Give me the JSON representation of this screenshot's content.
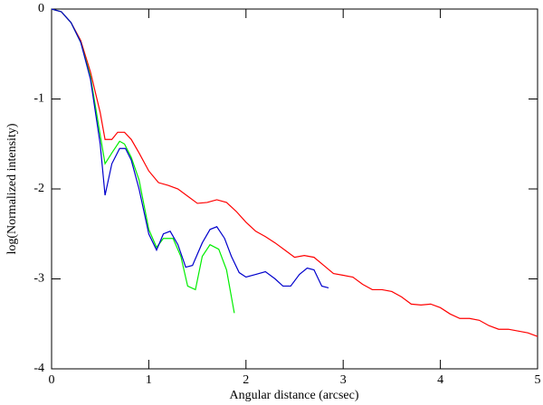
{
  "chart_data": {
    "type": "line",
    "xlabel": "Angular distance (arcsec)",
    "ylabel": "log(Normalized intensity)",
    "xlim": [
      0,
      5
    ],
    "ylim": [
      -4,
      0
    ],
    "xticks": [
      0,
      1,
      2,
      3,
      4,
      5
    ],
    "yticks": [
      0,
      -1,
      -2,
      -3,
      -4
    ],
    "series": [
      {
        "color": "#ff0000",
        "x": [
          0,
          0.1,
          0.2,
          0.3,
          0.4,
          0.5,
          0.55,
          0.62,
          0.68,
          0.75,
          0.82,
          0.9,
          1.0,
          1.1,
          1.2,
          1.3,
          1.4,
          1.5,
          1.6,
          1.7,
          1.8,
          1.9,
          2.0,
          2.1,
          2.2,
          2.3,
          2.4,
          2.5,
          2.6,
          2.7,
          2.8,
          2.9,
          3.0,
          3.1,
          3.2,
          3.3,
          3.4,
          3.5,
          3.6,
          3.7,
          3.8,
          3.9,
          4.0,
          4.1,
          4.2,
          4.3,
          4.4,
          4.5,
          4.6,
          4.7,
          4.8,
          4.9,
          5.0
        ],
        "values": [
          0,
          -0.03,
          -0.15,
          -0.35,
          -0.7,
          -1.15,
          -1.45,
          -1.45,
          -1.37,
          -1.37,
          -1.45,
          -1.6,
          -1.8,
          -1.93,
          -1.96,
          -2.0,
          -2.08,
          -2.16,
          -2.15,
          -2.12,
          -2.15,
          -2.25,
          -2.37,
          -2.47,
          -2.53,
          -2.6,
          -2.68,
          -2.76,
          -2.74,
          -2.76,
          -2.85,
          -2.94,
          -2.96,
          -2.98,
          -3.06,
          -3.12,
          -3.12,
          -3.14,
          -3.2,
          -3.28,
          -3.29,
          -3.28,
          -3.32,
          -3.39,
          -3.44,
          -3.44,
          -3.46,
          -3.52,
          -3.56,
          -3.56,
          -3.58,
          -3.6,
          -3.64
        ]
      },
      {
        "color": "#00ee00",
        "x": [
          0,
          0.1,
          0.2,
          0.3,
          0.4,
          0.5,
          0.55,
          0.62,
          0.7,
          0.75,
          0.82,
          0.9,
          1.0,
          1.08,
          1.15,
          1.25,
          1.33,
          1.4,
          1.48,
          1.55,
          1.63,
          1.72,
          1.8,
          1.88
        ],
        "values": [
          0,
          -0.03,
          -0.15,
          -0.37,
          -0.75,
          -1.4,
          -1.72,
          -1.6,
          -1.47,
          -1.5,
          -1.65,
          -1.9,
          -2.45,
          -2.65,
          -2.55,
          -2.55,
          -2.75,
          -3.08,
          -3.12,
          -2.75,
          -2.62,
          -2.67,
          -2.9,
          -3.38
        ]
      },
      {
        "color": "#0000cc",
        "x": [
          0,
          0.1,
          0.2,
          0.3,
          0.4,
          0.5,
          0.55,
          0.62,
          0.7,
          0.76,
          0.82,
          0.9,
          1.0,
          1.08,
          1.15,
          1.22,
          1.3,
          1.38,
          1.45,
          1.55,
          1.63,
          1.7,
          1.78,
          1.85,
          1.93,
          2.0,
          2.1,
          2.2,
          2.3,
          2.38,
          2.46,
          2.55,
          2.63,
          2.7,
          2.78,
          2.85
        ],
        "values": [
          0,
          -0.03,
          -0.15,
          -0.37,
          -0.78,
          -1.5,
          -2.07,
          -1.72,
          -1.55,
          -1.55,
          -1.68,
          -2.0,
          -2.5,
          -2.68,
          -2.5,
          -2.47,
          -2.62,
          -2.87,
          -2.85,
          -2.6,
          -2.45,
          -2.42,
          -2.55,
          -2.75,
          -2.93,
          -2.98,
          -2.95,
          -2.92,
          -3.0,
          -3.08,
          -3.08,
          -2.95,
          -2.88,
          -2.9,
          -3.08,
          -3.1
        ]
      }
    ]
  }
}
